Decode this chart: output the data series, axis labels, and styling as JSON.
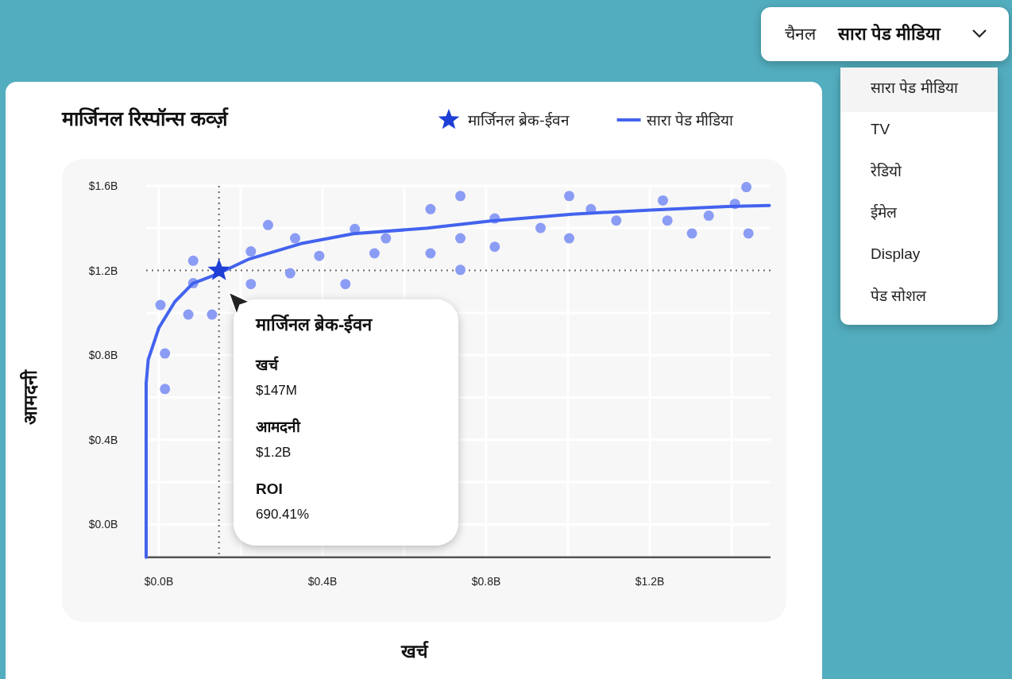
{
  "chart_data": [
    {
      "type": "scatter",
      "title": "मार्जिनल रिस्पॉन्स कर्व्ज़",
      "xlabel": "खर्च",
      "ylabel": "आमदनी",
      "xlim": [
        -0.031,
        1.495
      ],
      "ylim": [
        -0.155,
        1.6
      ],
      "xticks": [
        {
          "value": 0,
          "label": "$0.0B"
        },
        {
          "value": 0.2,
          "label": null
        },
        {
          "value": 0.4,
          "label": "$0.4B"
        },
        {
          "value": 0.6,
          "label": null
        },
        {
          "value": 0.8,
          "label": "$0.8B"
        },
        {
          "value": 1.0,
          "label": null
        },
        {
          "value": 1.2,
          "label": "$1.2B"
        },
        {
          "value": 1.4,
          "label": null
        }
      ],
      "yticks": [
        {
          "value": 0,
          "label": "$0.0B"
        },
        {
          "value": 0.2,
          "label": null
        },
        {
          "value": 0.4,
          "label": "$0.4B"
        },
        {
          "value": 0.6,
          "label": null
        },
        {
          "value": 0.8,
          "label": "$0.8B"
        },
        {
          "value": 1.0,
          "label": null
        },
        {
          "value": 1.2,
          "label": "$1.2B"
        },
        {
          "value": 1.4,
          "label": null
        },
        {
          "value": 1.6,
          "label": "$1.6B"
        }
      ],
      "grid": true,
      "legend": "top right",
      "series": [
        {
          "type": "scatter",
          "marker": "circle",
          "color": "#8b9cf4",
          "x": [
            0.664,
            0.267,
            0.479,
            0.333,
            0.555,
            0.225,
            0.664,
            0.084,
            0.392,
            0.527,
            0.321,
            0.084,
            0.225,
            0.456,
            0.004,
            0.072,
            0.13,
            0.015,
            0.015,
            0.737,
            0.737,
            0.737,
            0.821,
            0.821,
            0.933,
            1.003,
            1.003,
            1.056,
            1.118,
            1.232,
            1.243,
            1.303,
            1.344,
            1.408,
            1.436,
            1.441
          ],
          "values": [
            1.49,
            1.415,
            1.396,
            1.352,
            1.352,
            1.29,
            1.281,
            1.246,
            1.269,
            1.281,
            1.187,
            1.14,
            1.136,
            1.136,
            1.037,
            0.992,
            0.992,
            0.808,
            0.64,
            1.552,
            1.352,
            1.203,
            1.446,
            1.312,
            1.401,
            1.552,
            1.352,
            1.49,
            1.436,
            1.531,
            1.436,
            1.375,
            1.459,
            1.515,
            1.594,
            1.375
          ]
        },
        {
          "type": "line",
          "name": "सारा पेड मीडिया",
          "color": "#4363ee",
          "x": [
            -0.031,
            -0.031,
            -0.026,
            0.0,
            0.039,
            0.083,
            0.14,
            0.218,
            0.347,
            0.476,
            0.656,
            0.811,
            1.01,
            1.203,
            1.39,
            1.492
          ],
          "values": [
            -0.155,
            0.666,
            0.779,
            0.929,
            1.052,
            1.139,
            1.181,
            1.252,
            1.327,
            1.374,
            1.4,
            1.434,
            1.466,
            1.486,
            1.502,
            1.507
          ]
        },
        {
          "type": "scatter",
          "marker": "star",
          "name": "मार्जिनल ब्रेक-ईवन",
          "color": "#1f3fd6",
          "x": [
            0.147
          ],
          "values": [
            1.2
          ]
        }
      ],
      "ref_lines": [
        {
          "axis": "x",
          "value": 0.147,
          "color": "#666666",
          "line_style": "dotted"
        },
        {
          "axis": "y",
          "value": 1.2,
          "color": "#666666",
          "line_style": "dotted"
        }
      ],
      "annotations": [
        "मार्जिनल ब्रेक-ईवन",
        "खर्च",
        "$147M",
        "आमदनी",
        "$1.2B",
        "ROI",
        "690.41%"
      ]
    },
    {
      "type": "other",
      "title": "चैनल",
      "annotations": [
        "सारा पेड मीडिया",
        "सारा पेड मीडिया",
        "TV",
        "रेडियो",
        "ईमेल",
        "Display",
        "पेड सोशल"
      ]
    }
  ]
}
